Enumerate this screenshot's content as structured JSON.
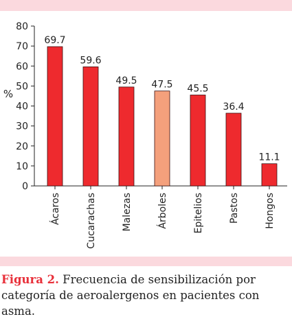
{
  "chart_data": {
    "type": "bar",
    "categories": [
      "Ácaros",
      "Cucarachas",
      "Malezas",
      "Árboles",
      "Epitelios",
      "Pastos",
      "Hongos"
    ],
    "values": [
      69.7,
      59.6,
      49.5,
      47.5,
      45.5,
      36.4,
      11.1
    ],
    "value_labels": [
      "69.7",
      "59.6",
      "49.5",
      "47.5",
      "45.5",
      "36.4",
      "11.1"
    ],
    "ylabel": "%",
    "ylim": [
      0,
      80
    ],
    "yticks": [
      0,
      10,
      20,
      30,
      40,
      50,
      60,
      70,
      80
    ],
    "grid": false,
    "colors": {
      "bar": "#ee2a2e",
      "highlight": "#f4a07c",
      "bar_stroke": "#3a1010",
      "axis": "#222222",
      "band": "#fbd9de"
    },
    "highlight_index": 3
  },
  "caption": {
    "label": "Figura 2.",
    "text": " Frecuencia de sensibilización por categoría de aeroalergenos en pacientes con asma."
  }
}
